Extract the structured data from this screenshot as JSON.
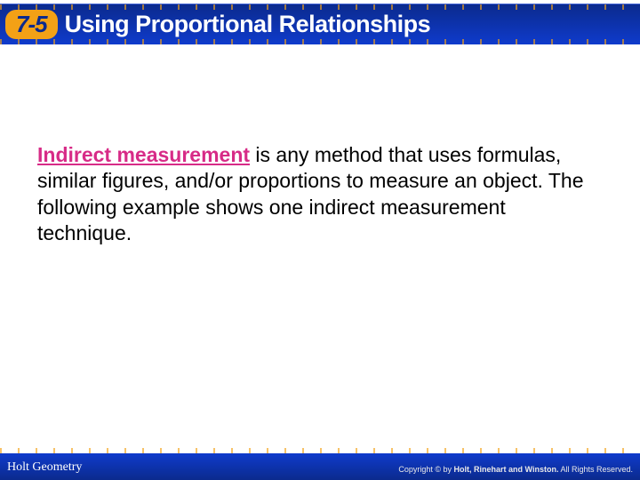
{
  "colors": {
    "header_grad_top": "#0b2a8d",
    "header_grad_bot": "#0f3bcc",
    "badge_bg": "#f3a116",
    "badge_text": "#0b2a8d",
    "title_text": "#ffffff",
    "body_text": "#000000",
    "term_color": "#d72b87",
    "footer_text": "#ffffff",
    "footer_copy": "#e9e9e9",
    "background": "#ffffff",
    "tick_color": "rgba(243,161,22,0.65)"
  },
  "typography": {
    "header_title_fontsize": 27,
    "badge_fontsize": 26,
    "body_fontsize": 23,
    "footer_left_fontsize": 14,
    "footer_right_fontsize": 9,
    "body_font": "Verdana",
    "footer_left_font": "Georgia"
  },
  "header": {
    "lesson_number": "7-5",
    "title": "Using Proportional Relationships"
  },
  "body": {
    "term": "Indirect measurement",
    "text_after_term": " is any method that uses formulas, similar figures, and/or proportions to measure an object. The following example shows one indirect measurement technique."
  },
  "footer": {
    "left": "Holt Geometry",
    "right_prefix": "Copyright © by ",
    "right_bold": "Holt, Rinehart and Winston.",
    "right_suffix": " All Rights Reserved."
  }
}
